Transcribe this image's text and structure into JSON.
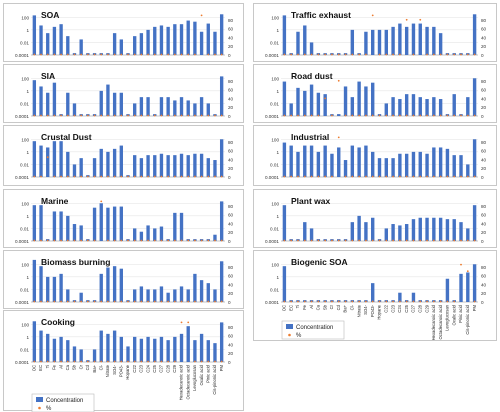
{
  "figure": {
    "species": [
      "OC",
      "EC",
      "Ti",
      "Fe",
      "Al",
      "Ca",
      "Sb",
      "Cr",
      "Cd",
      "Ba+",
      "Cl-",
      "Nitrate",
      "SO4-",
      "PO43-",
      "Hopane",
      "C22",
      "C23",
      "C24",
      "C25",
      "C27",
      "C28",
      "C29",
      "Hexadecanoic acid",
      "Octadecanoic acid",
      "Levoglucosan",
      "Oxalic acid",
      "Pinic acid",
      "Cis-pinonic acid",
      "PM"
    ],
    "y_tick_labels": [
      "100",
      "1",
      "0.01",
      "0.0001"
    ],
    "y2_tick_labels": [
      "80",
      "60",
      "40",
      "20",
      "0"
    ],
    "legend": {
      "concentration": "Concentration",
      "percent": "%"
    },
    "colors": {
      "bar": "#4472C4",
      "percent": "#ED7D31"
    }
  },
  "chart_data": [
    {
      "type": "bar",
      "title": "SOA",
      "y_scale": "log",
      "ylim": [
        0.0001,
        1000
      ],
      "y2lim": [
        0,
        100
      ],
      "series": [
        {
          "name": "Concentration",
          "values": [
            200,
            5,
            0.3,
            3,
            8,
            0.1,
            0.0002,
            0.03,
            0.0002,
            0.0002,
            0.0002,
            0.0002,
            0.3,
            0.03,
            0.0002,
            0.1,
            0.3,
            1,
            3,
            5,
            3,
            8,
            8,
            30,
            20,
            0.5,
            10,
            0.5,
            300
          ]
        },
        {
          "name": "%",
          "values": [
            1,
            1,
            1,
            1,
            1,
            1,
            1,
            1,
            1,
            1,
            1,
            1,
            1,
            1,
            1,
            1,
            1,
            1,
            1,
            1,
            1,
            1,
            1,
            1,
            1,
            90,
            1,
            1,
            1
          ]
        }
      ]
    },
    {
      "type": "bar",
      "title": "SIA",
      "y_scale": "log",
      "ylim": [
        0.0001,
        1000
      ],
      "y2_range": [
        0,
        100
      ],
      "series": [
        {
          "name": "Concentration",
          "values": [
            50,
            5,
            0.5,
            20,
            0.0002,
            0.5,
            0.01,
            0.0002,
            0.0002,
            0.0002,
            1,
            10,
            0.5,
            0.5,
            0.0002,
            0.01,
            0.1,
            0.1,
            0.0002,
            0.1,
            0.1,
            0.03,
            0.1,
            0.03,
            0.01,
            0.1,
            0.01,
            0.0002,
            200
          ]
        },
        {
          "name": "%",
          "values": [
            1,
            1,
            1,
            1,
            1,
            1,
            1,
            1,
            1,
            1,
            1,
            1,
            1,
            1,
            1,
            1,
            1,
            1,
            1,
            1,
            1,
            1,
            1,
            1,
            1,
            1,
            1,
            1,
            1
          ]
        }
      ]
    },
    {
      "type": "bar",
      "title": "Crustal Dust",
      "y_scale": "log",
      "ylim": [
        0.0001,
        1000
      ],
      "series": [
        {
          "name": "Concentration",
          "values": [
            50,
            10,
            5,
            50,
            50,
            1,
            0.01,
            0.1,
            0.0002,
            0.1,
            3,
            1,
            3,
            10,
            0.0002,
            0.3,
            0.1,
            0.3,
            0.3,
            0.5,
            0.3,
            0.3,
            0.5,
            0.3,
            0.5,
            0.5,
            0.1,
            0.05,
            100
          ]
        },
        {
          "name": "%",
          "values": [
            1,
            1,
            45,
            1,
            1,
            1,
            1,
            1,
            1,
            1,
            1,
            1,
            1,
            1,
            1,
            1,
            1,
            1,
            1,
            1,
            1,
            1,
            1,
            1,
            1,
            1,
            1,
            1,
            1
          ]
        }
      ]
    },
    {
      "type": "bar",
      "title": "Marine",
      "y_scale": "log",
      "ylim": [
        0.0001,
        1000
      ],
      "series": [
        {
          "name": "Concentration",
          "values": [
            50,
            50,
            0.0002,
            5,
            5,
            1,
            0.05,
            0.03,
            0.0002,
            20,
            100,
            20,
            30,
            30,
            0.0002,
            0.01,
            0.003,
            0.03,
            0.01,
            0.02,
            0.0002,
            3,
            3,
            0.0002,
            0.0002,
            0.0002,
            0.0002,
            0.001,
            200
          ]
        },
        {
          "name": "%",
          "values": [
            1,
            1,
            1,
            1,
            1,
            1,
            1,
            1,
            1,
            1,
            90,
            1,
            1,
            1,
            1,
            1,
            1,
            1,
            1,
            1,
            1,
            1,
            1,
            1,
            1,
            1,
            1,
            1,
            1
          ]
        }
      ]
    },
    {
      "type": "bar",
      "title": "Biomass burning",
      "y_scale": "log",
      "ylim": [
        0.0001,
        1000
      ],
      "series": [
        {
          "name": "Concentration",
          "values": [
            500,
            50,
            1,
            1,
            3,
            0.01,
            0.0002,
            0.003,
            0.0002,
            0.0002,
            3,
            30,
            50,
            20,
            0.0002,
            0.01,
            0.03,
            0.01,
            0.01,
            0.03,
            0.003,
            0.01,
            0.03,
            0.01,
            3,
            0.3,
            0.1,
            0.01,
            300
          ]
        },
        {
          "name": "%",
          "values": [
            1,
            1,
            1,
            1,
            1,
            1,
            1,
            1,
            1,
            1,
            1,
            1,
            1,
            1,
            1,
            1,
            1,
            1,
            1,
            1,
            1,
            1,
            1,
            1,
            1,
            1,
            1,
            1,
            1
          ]
        }
      ]
    },
    {
      "type": "bar",
      "title": "Cooking",
      "y_scale": "log",
      "ylim": [
        0.0001,
        1000
      ],
      "series": [
        {
          "name": "Concentration",
          "values": [
            300,
            10,
            3,
            0.5,
            1,
            0.3,
            0.03,
            0.01,
            0.0002,
            0.01,
            10,
            3,
            10,
            1,
            0.03,
            1,
            0.5,
            1,
            0.5,
            1,
            0.3,
            1,
            3,
            50,
            0.3,
            3,
            0.3,
            0.1,
            200
          ]
        },
        {
          "name": "%",
          "values": [
            1,
            1,
            1,
            1,
            1,
            1,
            1,
            1,
            1,
            1,
            1,
            1,
            1,
            1,
            1,
            1,
            1,
            1,
            1,
            1,
            1,
            1,
            90,
            90,
            1,
            1,
            1,
            1,
            1
          ]
        }
      ]
    },
    {
      "type": "bar",
      "title": "Traffic exhaust",
      "y_scale": "log",
      "ylim": [
        0.0001,
        1000
      ],
      "series": [
        {
          "name": "Concentration",
          "values": [
            200,
            0.0002,
            0.5,
            5,
            0.01,
            0.0002,
            0.0002,
            0.0002,
            0.0002,
            0.0002,
            1,
            0.0002,
            0.5,
            1,
            1,
            1,
            3,
            10,
            3,
            10,
            10,
            3,
            3,
            0.3,
            0.0002,
            0.0002,
            0.0002,
            0.0002,
            300
          ]
        },
        {
          "name": "%",
          "values": [
            1,
            1,
            1,
            1,
            1,
            1,
            1,
            1,
            1,
            1,
            1,
            1,
            1,
            90,
            1,
            1,
            1,
            1,
            80,
            1,
            80,
            1,
            1,
            1,
            1,
            1,
            1,
            1,
            1
          ]
        }
      ]
    },
    {
      "type": "bar",
      "title": "Road dust",
      "y_scale": "log",
      "ylim": [
        0.0001,
        1000
      ],
      "series": [
        {
          "name": "Concentration",
          "values": [
            30,
            0.01,
            3,
            1,
            10,
            0.5,
            0.3,
            0.0002,
            0.0002,
            5,
            0.1,
            30,
            5,
            20,
            0.0002,
            0.01,
            0.1,
            0.05,
            0.3,
            0.3,
            0.1,
            0.05,
            0.1,
            0.05,
            0.0002,
            0.3,
            0.0002,
            0.1,
            100
          ]
        },
        {
          "name": "%",
          "values": [
            1,
            1,
            1,
            1,
            1,
            1,
            40,
            1,
            80,
            1,
            1,
            1,
            1,
            1,
            1,
            1,
            1,
            1,
            1,
            1,
            1,
            1,
            1,
            1,
            1,
            1,
            1,
            1,
            1
          ]
        }
      ]
    },
    {
      "type": "bar",
      "title": "Industrial",
      "y_scale": "log",
      "ylim": [
        0.0001,
        1000
      ],
      "series": [
        {
          "name": "Concentration",
          "values": [
            30,
            10,
            1,
            10,
            10,
            1,
            10,
            0.5,
            5,
            0.05,
            10,
            5,
            10,
            1,
            0.1,
            0.1,
            0.1,
            0.5,
            0.5,
            1,
            1,
            0.5,
            5,
            5,
            3,
            0.3,
            0.3,
            0.01,
            100
          ]
        },
        {
          "name": "%",
          "values": [
            1,
            1,
            1,
            1,
            1,
            1,
            1,
            1,
            90,
            1,
            1,
            1,
            1,
            1,
            1,
            1,
            1,
            1,
            1,
            1,
            1,
            1,
            1,
            1,
            1,
            1,
            1,
            1,
            1
          ]
        }
      ]
    },
    {
      "type": "bar",
      "title": "Plant wax",
      "y_scale": "log",
      "ylim": [
        0.0001,
        1000
      ],
      "series": [
        {
          "name": "Concentration",
          "values": [
            50,
            0.0002,
            0.0002,
            0.1,
            0.01,
            0.0002,
            0.0002,
            0.0002,
            0.0002,
            0.0002,
            0.1,
            1,
            0.1,
            0.5,
            0.0002,
            0.01,
            0.05,
            0.03,
            0.05,
            0.3,
            0.5,
            0.5,
            0.5,
            0.5,
            0.3,
            0.3,
            0.1,
            0.01,
            50
          ]
        },
        {
          "name": "%",
          "values": [
            1,
            1,
            1,
            1,
            1,
            1,
            1,
            1,
            1,
            1,
            1,
            1,
            1,
            1,
            1,
            1,
            1,
            1,
            1,
            1,
            1,
            1,
            1,
            1,
            1,
            1,
            1,
            1,
            1
          ]
        }
      ]
    },
    {
      "type": "bar",
      "title": "Biogenic SOA",
      "y_scale": "log",
      "ylim": [
        0.0001,
        1000
      ],
      "series": [
        {
          "name": "Concentration",
          "values": [
            50,
            0.0002,
            0.0002,
            0.0002,
            0.0002,
            0.0002,
            0.0002,
            0.0002,
            0.0002,
            0.0002,
            0.0002,
            0.0002,
            0.0002,
            0.1,
            0.0002,
            0.0002,
            0.0002,
            0.003,
            0.0002,
            0.003,
            0.0002,
            0.0002,
            0.0002,
            0.0002,
            0.5,
            0.0002,
            3,
            5,
            100
          ]
        },
        {
          "name": "%",
          "values": [
            1,
            1,
            1,
            1,
            1,
            1,
            1,
            1,
            1,
            1,
            1,
            1,
            1,
            1,
            1,
            1,
            1,
            1,
            1,
            1,
            1,
            1,
            1,
            1,
            1,
            1,
            85,
            70,
            1
          ]
        }
      ]
    }
  ]
}
